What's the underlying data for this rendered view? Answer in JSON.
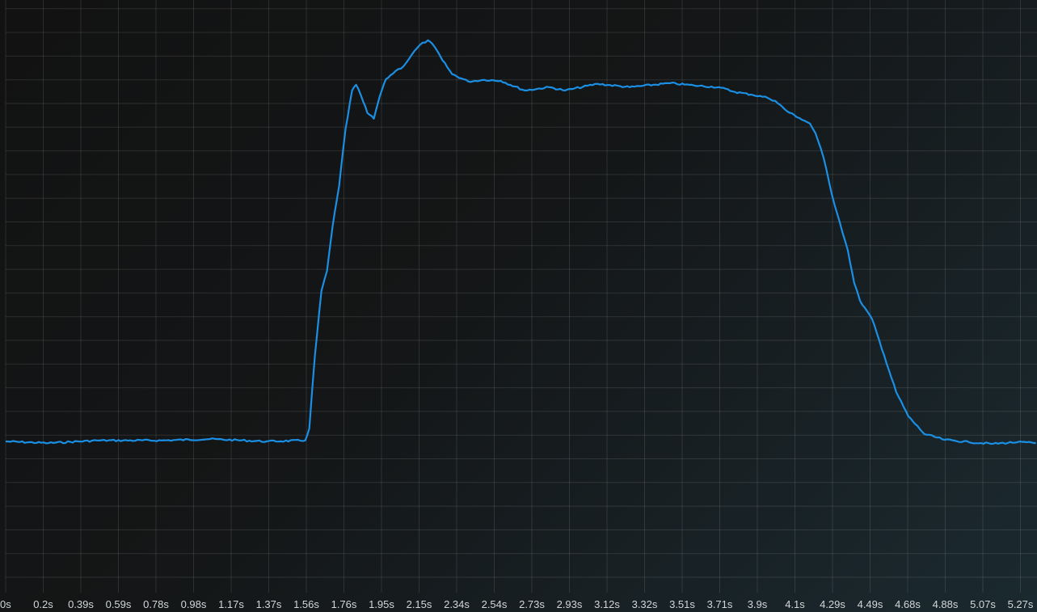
{
  "chart_data": {
    "type": "line",
    "title": "",
    "xlabel": "",
    "ylabel": "",
    "grid": true,
    "line_color": "#1a8fe3",
    "xlim": [
      0,
      5.35
    ],
    "ylim": [
      0,
      24.6
    ],
    "x_tick_labels": [
      "0s",
      "0.2s",
      "0.39s",
      "0.59s",
      "0.78s",
      "0.98s",
      "1.17s",
      "1.37s",
      "1.56s",
      "1.76s",
      "1.95s",
      "2.15s",
      "2.34s",
      "2.54s",
      "2.73s",
      "2.93s",
      "3.12s",
      "3.32s",
      "3.51s",
      "3.71s",
      "3.9s",
      "4.1s",
      "4.29s",
      "4.49s",
      "4.68s",
      "4.88s",
      "5.07s",
      "5.27s"
    ],
    "x_tick_step": 0.1952,
    "series": [
      {
        "x": [
          0,
          0.222,
          0.474,
          0.809,
          1.061,
          1.355,
          1.556,
          1.577,
          1.606,
          1.64,
          1.669,
          1.698,
          1.732,
          1.765,
          1.799,
          1.82,
          1.845,
          1.879,
          1.912,
          1.942,
          1.975,
          2.025,
          2.067,
          2.109,
          2.151,
          2.193,
          2.227,
          2.269,
          2.319,
          2.403,
          2.487,
          2.571,
          2.696,
          2.822,
          2.906,
          3.074,
          3.241,
          3.451,
          3.577,
          3.703,
          3.787,
          3.871,
          3.955,
          3.997,
          4.059,
          4.122,
          4.177,
          4.206,
          4.248,
          4.29,
          4.332,
          4.374,
          4.407,
          4.437,
          4.5,
          4.563,
          4.625,
          4.688,
          4.772,
          4.877,
          5.003,
          5.129,
          5.255,
          5.351
        ],
        "y": [
          6.38,
          6.31,
          6.42,
          6.42,
          6.48,
          6.38,
          6.42,
          6.93,
          10.0,
          12.73,
          13.58,
          15.46,
          17.17,
          19.56,
          21.19,
          21.43,
          20.99,
          20.24,
          20.0,
          20.92,
          21.67,
          22.01,
          22.22,
          22.7,
          23.11,
          23.31,
          23.04,
          22.46,
          21.88,
          21.57,
          21.64,
          21.6,
          21.19,
          21.33,
          21.19,
          21.47,
          21.33,
          21.5,
          21.4,
          21.33,
          21.13,
          21.02,
          20.89,
          20.75,
          20.31,
          20.03,
          19.8,
          19.39,
          18.36,
          16.83,
          15.63,
          14.44,
          13.07,
          12.32,
          11.54,
          10.0,
          8.46,
          7.44,
          6.69,
          6.45,
          6.35,
          6.28,
          6.35,
          6.31
        ]
      }
    ]
  }
}
